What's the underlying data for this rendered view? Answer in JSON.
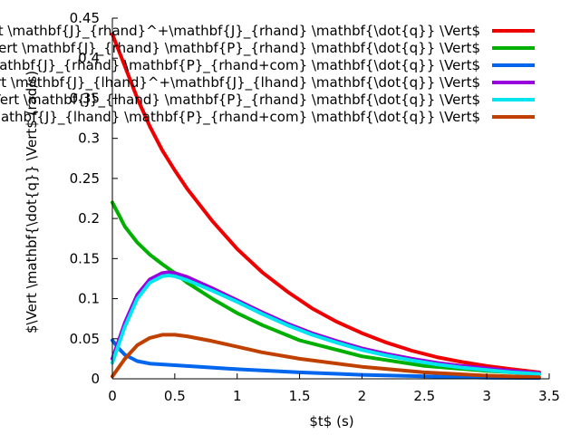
{
  "chart_data": {
    "type": "line",
    "title": "",
    "xlabel": "$t$ (s)",
    "ylabel": "$\\Vert \\mathbf{\\dot{q}} \\Vert$ (rad/s)",
    "xlim": [
      0,
      3.5
    ],
    "ylim": [
      0,
      0.45
    ],
    "xticks": [
      "0",
      "0.5",
      "1",
      "1.5",
      "2",
      "2.5",
      "3",
      "3.5"
    ],
    "yticks": [
      "0",
      "0.05",
      "0.1",
      "0.15",
      "0.2",
      "0.25",
      "0.3",
      "0.35",
      "0.4",
      "0.45"
    ],
    "grid": false,
    "legend_position": "top-right",
    "series": [
      {
        "name": "$\\Vert \\mathbf{J}_{rhand}^+\\mathbf{J}_{rhand} \\mathbf{\\dot{q}} \\Vert$",
        "color": "#ee0000",
        "x": [
          0,
          0.1,
          0.2,
          0.3,
          0.4,
          0.5,
          0.6,
          0.8,
          1.0,
          1.2,
          1.4,
          1.6,
          1.8,
          2.0,
          2.2,
          2.4,
          2.6,
          2.8,
          3.0,
          3.2,
          3.42
        ],
        "y": [
          0.43,
          0.39,
          0.35,
          0.315,
          0.285,
          0.26,
          0.237,
          0.197,
          0.162,
          0.133,
          0.109,
          0.088,
          0.071,
          0.057,
          0.045,
          0.035,
          0.027,
          0.021,
          0.016,
          0.012,
          0.008
        ]
      },
      {
        "name": "$\\Vert \\mathbf{J}_{rhand} \\mathbf{P}_{rhand} \\mathbf{\\dot{q}} \\Vert$",
        "color": "#00b000",
        "x": [
          0,
          0.05,
          0.1,
          0.2,
          0.3,
          0.4,
          0.5,
          0.6,
          0.7,
          0.8,
          1.0,
          1.2,
          1.5,
          2.0,
          2.5,
          3.0,
          3.42
        ],
        "y": [
          0.22,
          0.205,
          0.19,
          0.17,
          0.155,
          0.143,
          0.132,
          0.12,
          0.11,
          0.1,
          0.082,
          0.067,
          0.048,
          0.028,
          0.016,
          0.01,
          0.006
        ]
      },
      {
        "name": "$\\Vert \\mathbf{J}_{rhand} \\mathbf{P}_{rhand+com} \\mathbf{\\dot{q}} \\Vert$",
        "color": "#0066ee",
        "x": [
          0,
          0.05,
          0.1,
          0.2,
          0.3,
          0.5,
          0.7,
          1.0,
          1.5,
          2.0,
          2.5,
          3.0,
          3.42
        ],
        "y": [
          0.048,
          0.038,
          0.03,
          0.022,
          0.019,
          0.017,
          0.015,
          0.012,
          0.008,
          0.005,
          0.003,
          0.0015,
          0.001
        ]
      },
      {
        "name": "$\\Vert \\mathbf{J}_{lhand}^+\\mathbf{J}_{lhand} \\mathbf{\\dot{q}} \\Vert$",
        "color": "#9900dd",
        "x": [
          0,
          0.1,
          0.2,
          0.3,
          0.4,
          0.45,
          0.5,
          0.6,
          0.8,
          1.0,
          1.2,
          1.4,
          1.6,
          1.8,
          2.0,
          2.2,
          2.4,
          2.6,
          2.8,
          3.0,
          3.2,
          3.42
        ],
        "y": [
          0.025,
          0.07,
          0.105,
          0.124,
          0.132,
          0.133,
          0.132,
          0.127,
          0.113,
          0.098,
          0.083,
          0.069,
          0.057,
          0.047,
          0.038,
          0.031,
          0.025,
          0.02,
          0.016,
          0.013,
          0.01,
          0.007
        ]
      },
      {
        "name": "$\\Vert \\mathbf{J}_{lhand} \\mathbf{P}_{rhand} \\mathbf{\\dot{q}} \\Vert$",
        "color": "#00e5ee",
        "x": [
          0,
          0.1,
          0.2,
          0.3,
          0.4,
          0.45,
          0.5,
          0.6,
          0.8,
          1.0,
          1.2,
          1.4,
          1.6,
          1.8,
          2.0,
          2.2,
          2.4,
          2.6,
          2.8,
          3.0,
          3.2,
          3.42
        ],
        "y": [
          0.02,
          0.065,
          0.1,
          0.12,
          0.128,
          0.129,
          0.128,
          0.123,
          0.11,
          0.096,
          0.081,
          0.067,
          0.055,
          0.045,
          0.036,
          0.029,
          0.023,
          0.018,
          0.014,
          0.011,
          0.008,
          0.006
        ]
      },
      {
        "name": "$\\Vert \\mathbf{J}_{lhand} \\mathbf{P}_{rhand+com} \\mathbf{\\dot{q}} \\Vert$",
        "color": "#c04000",
        "x": [
          0,
          0.1,
          0.2,
          0.3,
          0.4,
          0.5,
          0.6,
          0.8,
          1.0,
          1.2,
          1.5,
          2.0,
          2.5,
          3.0,
          3.42
        ],
        "y": [
          0.003,
          0.025,
          0.042,
          0.051,
          0.055,
          0.055,
          0.053,
          0.047,
          0.04,
          0.033,
          0.025,
          0.015,
          0.008,
          0.004,
          0.002
        ]
      }
    ]
  }
}
